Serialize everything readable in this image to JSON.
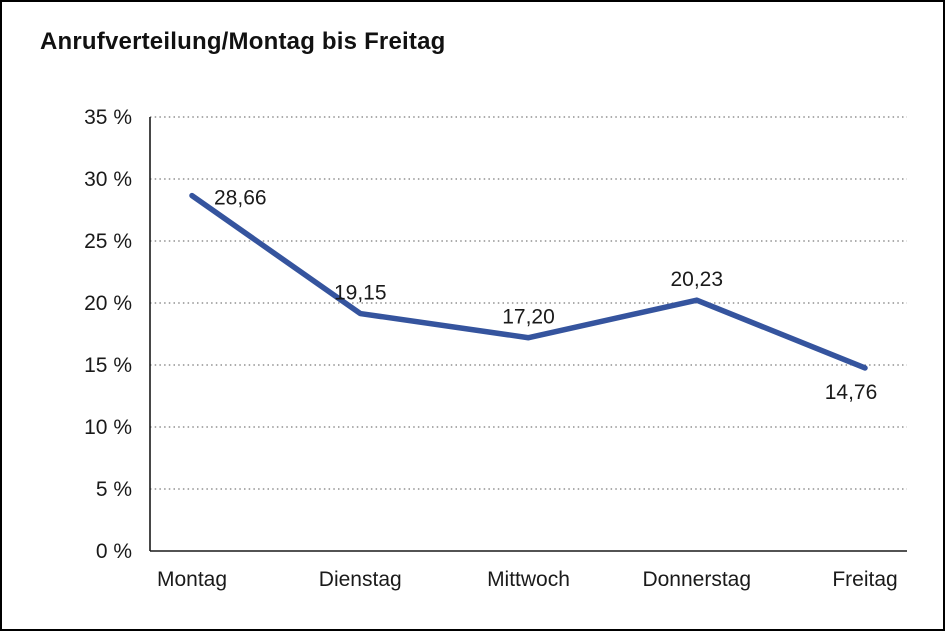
{
  "chart_data": {
    "type": "line",
    "title": "Anrufverteilung/Montag bis Freitag",
    "categories": [
      "Montag",
      "Dienstag",
      "Mittwoch",
      "Donnerstag",
      "Freitag"
    ],
    "values": [
      28.66,
      19.15,
      17.2,
      20.23,
      14.76
    ],
    "value_labels": [
      "28,66",
      "19,15",
      "17,20",
      "20,23",
      "14,76"
    ],
    "label_positions": [
      "right",
      "above",
      "above",
      "above",
      "below"
    ],
    "xlabel": "",
    "ylabel": "",
    "ylim": [
      0,
      35
    ],
    "ytick_step": 5,
    "ytick_labels": [
      "0 %",
      "5 %",
      "10 %",
      "15 %",
      "20 %",
      "25 %",
      "30 %",
      "35 %"
    ],
    "grid": "horizontal-dotted",
    "legend": "none",
    "line_color": "#35549E",
    "text_color": "#1a1a1a"
  }
}
